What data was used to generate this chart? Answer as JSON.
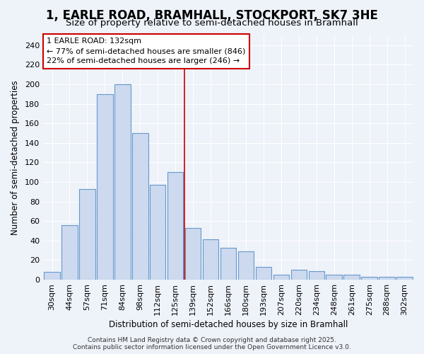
{
  "title": "1, EARLE ROAD, BRAMHALL, STOCKPORT, SK7 3HE",
  "subtitle": "Size of property relative to semi-detached houses in Bramhall",
  "xlabel": "Distribution of semi-detached houses by size in Bramhall",
  "ylabel": "Number of semi-detached properties",
  "categories": [
    "30sqm",
    "44sqm",
    "57sqm",
    "71sqm",
    "84sqm",
    "98sqm",
    "112sqm",
    "125sqm",
    "139sqm",
    "152sqm",
    "166sqm",
    "180sqm",
    "193sqm",
    "207sqm",
    "220sqm",
    "234sqm",
    "248sqm",
    "261sqm",
    "275sqm",
    "288sqm",
    "302sqm"
  ],
  "values": [
    8,
    56,
    93,
    190,
    200,
    150,
    97,
    110,
    53,
    41,
    33,
    29,
    13,
    5,
    10,
    9,
    5,
    5,
    3,
    3,
    3
  ],
  "bar_color": "#ccd9ee",
  "bar_edge_color": "#6699cc",
  "vline_x": 7.5,
  "vline_color": "#cc0000",
  "annotation_title": "1 EARLE ROAD: 132sqm",
  "annotation_line1": "← 77% of semi-detached houses are smaller (846)",
  "annotation_line2": "22% of semi-detached houses are larger (246) →",
  "annotation_box_color": "#cc0000",
  "annotation_box_fill": "#ffffff",
  "ylim": [
    0,
    250
  ],
  "yticks": [
    0,
    20,
    40,
    60,
    80,
    100,
    120,
    140,
    160,
    180,
    200,
    220,
    240
  ],
  "bg_color": "#eef2f9",
  "footer": "Contains HM Land Registry data © Crown copyright and database right 2025.\nContains public sector information licensed under the Open Government Licence v3.0.",
  "title_fontsize": 12,
  "subtitle_fontsize": 9.5,
  "label_fontsize": 8.5,
  "tick_fontsize": 8,
  "footer_fontsize": 6.5,
  "ann_fontsize": 8
}
